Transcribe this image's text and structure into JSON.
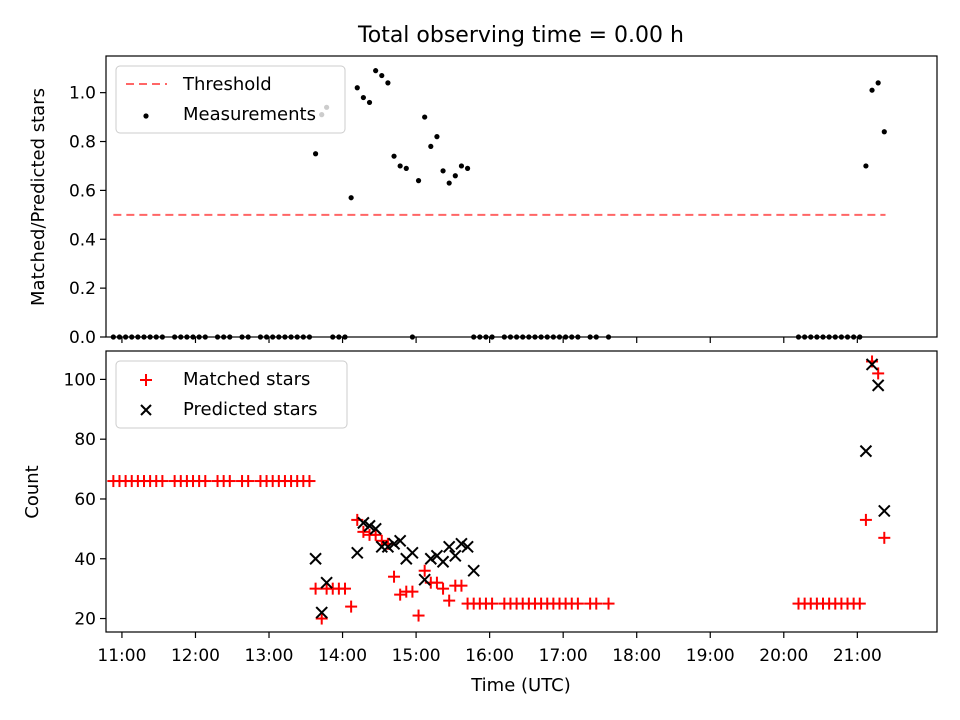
{
  "chart_data": [
    {
      "type": "scatter",
      "title": "Total observing time = 0.00 h",
      "ylabel": "Matched/Predicted stars",
      "xlabel": "",
      "xlim": [
        "10:47",
        "22:05"
      ],
      "ylim": [
        0,
        1.15
      ],
      "yticks": [
        0.0,
        0.2,
        0.4,
        0.6,
        0.8,
        1.0
      ],
      "ytick_labels": [
        "0.0",
        "0.2",
        "0.4",
        "0.6",
        "0.8",
        "1.0"
      ],
      "legend": "top-left",
      "threshold": {
        "name": "Threshold",
        "color": "#ff6666",
        "style": "dashed",
        "x": [
          "10:53",
          "21:23"
        ],
        "y": 0.5
      },
      "series": [
        {
          "name": "Measurements",
          "color": "#000000",
          "marker": "dot",
          "x": [
            "10:53",
            "10:58",
            "11:03",
            "11:08",
            "11:13",
            "11:18",
            "11:23",
            "11:28",
            "11:33",
            "11:43",
            "11:48",
            "11:53",
            "11:58",
            "12:03",
            "12:08",
            "12:18",
            "12:23",
            "12:28",
            "12:38",
            "12:43",
            "12:53",
            "12:58",
            "13:03",
            "13:08",
            "13:13",
            "13:18",
            "13:23",
            "13:28",
            "13:33",
            "13:38",
            "13:43",
            "13:47",
            "13:52",
            "13:57",
            "14:02",
            "14:07",
            "14:12",
            "14:17",
            "14:22",
            "14:27",
            "14:32",
            "14:37",
            "14:42",
            "14:47",
            "14:52",
            "14:57",
            "15:02",
            "15:07",
            "15:12",
            "15:17",
            "15:22",
            "15:27",
            "15:32",
            "15:37",
            "15:42",
            "15:47",
            "15:52",
            "15:57",
            "16:02",
            "16:12",
            "16:17",
            "16:22",
            "16:27",
            "16:32",
            "16:37",
            "16:42",
            "16:47",
            "16:52",
            "16:57",
            "17:02",
            "17:07",
            "17:12",
            "17:22",
            "17:27",
            "17:37",
            "20:12",
            "20:17",
            "20:22",
            "20:27",
            "20:32",
            "20:37",
            "20:42",
            "20:47",
            "20:52",
            "20:57",
            "21:02",
            "21:07",
            "21:12",
            "21:17",
            "21:22"
          ],
          "y": [
            0,
            0,
            0,
            0,
            0,
            0,
            0,
            0,
            0,
            0,
            0,
            0,
            0,
            0,
            0,
            0,
            0,
            0,
            0,
            0,
            0,
            0,
            0,
            0,
            0,
            0,
            0,
            0,
            0,
            0.75,
            0.91,
            0.94,
            0,
            0,
            0,
            0.57,
            1.02,
            0.98,
            0.96,
            1.09,
            1.07,
            1.04,
            0.74,
            0.7,
            0.69,
            0,
            0.64,
            0.9,
            0.78,
            0.82,
            0.68,
            0.63,
            0.66,
            0.7,
            0.69,
            0,
            0,
            0,
            0,
            0,
            0,
            0,
            0,
            0,
            0,
            0,
            0,
            0,
            0,
            0,
            0,
            0,
            0,
            0,
            0,
            0,
            0,
            0,
            0,
            0,
            0,
            0,
            0,
            0,
            0,
            0,
            0.7,
            1.01,
            1.04,
            0.84
          ]
        }
      ]
    },
    {
      "type": "scatter",
      "title": "",
      "ylabel": "Count",
      "xlabel": "Time (UTC)",
      "xlim": [
        "10:47",
        "22:05"
      ],
      "ylim": [
        15.5,
        109.5
      ],
      "yticks": [
        20,
        40,
        60,
        80,
        100
      ],
      "ytick_labels": [
        "20",
        "40",
        "60",
        "80",
        "100"
      ],
      "xticks": [
        "11:00",
        "12:00",
        "13:00",
        "14:00",
        "15:00",
        "16:00",
        "17:00",
        "18:00",
        "19:00",
        "20:00",
        "21:00"
      ],
      "xtick_labels": [
        "11:00",
        "12:00",
        "13:00",
        "14:00",
        "15:00",
        "16:00",
        "17:00",
        "18:00",
        "19:00",
        "20:00",
        "21:00"
      ],
      "legend": "top-left",
      "series": [
        {
          "name": "Matched stars",
          "color": "#ff0000",
          "marker": "plus",
          "x": [
            "10:53",
            "10:58",
            "11:03",
            "11:08",
            "11:13",
            "11:18",
            "11:23",
            "11:28",
            "11:33",
            "11:43",
            "11:48",
            "11:53",
            "11:58",
            "12:03",
            "12:08",
            "12:18",
            "12:23",
            "12:28",
            "12:38",
            "12:43",
            "12:53",
            "12:58",
            "13:03",
            "13:08",
            "13:13",
            "13:18",
            "13:23",
            "13:28",
            "13:33",
            "13:38",
            "13:43",
            "13:47",
            "13:52",
            "13:57",
            "14:02",
            "14:07",
            "14:12",
            "14:17",
            "14:22",
            "14:27",
            "14:32",
            "14:37",
            "14:42",
            "14:47",
            "14:52",
            "14:57",
            "15:02",
            "15:07",
            "15:12",
            "15:17",
            "15:22",
            "15:27",
            "15:32",
            "15:37",
            "15:42",
            "15:47",
            "15:52",
            "15:57",
            "16:02",
            "16:12",
            "16:17",
            "16:22",
            "16:27",
            "16:32",
            "16:37",
            "16:42",
            "16:47",
            "16:52",
            "16:57",
            "17:02",
            "17:07",
            "17:12",
            "17:22",
            "17:27",
            "17:37",
            "20:12",
            "20:17",
            "20:22",
            "20:27",
            "20:32",
            "20:37",
            "20:42",
            "20:47",
            "20:52",
            "20:57",
            "21:02",
            "21:07",
            "21:12",
            "21:17",
            "21:22"
          ],
          "y": [
            66,
            66,
            66,
            66,
            66,
            66,
            66,
            66,
            66,
            66,
            66,
            66,
            66,
            66,
            66,
            66,
            66,
            66,
            66,
            66,
            66,
            66,
            66,
            66,
            66,
            66,
            66,
            66,
            66,
            30,
            20,
            30,
            30,
            30,
            30,
            24,
            53,
            49,
            48,
            48,
            46,
            45,
            34,
            28,
            29,
            29,
            21,
            36,
            32,
            32,
            30,
            26,
            31,
            31,
            25,
            25,
            25,
            25,
            25,
            25,
            25,
            25,
            25,
            25,
            25,
            25,
            25,
            25,
            25,
            25,
            25,
            25,
            25,
            25,
            25,
            25,
            25,
            25,
            25,
            25,
            25,
            25,
            25,
            25,
            25,
            25,
            53,
            106,
            102,
            47
          ]
        },
        {
          "name": "Predicted stars",
          "color": "#000000",
          "marker": "x",
          "x": [
            "13:38",
            "13:43",
            "13:47",
            "14:12",
            "14:17",
            "14:22",
            "14:27",
            "14:32",
            "14:37",
            "14:42",
            "14:47",
            "14:52",
            "14:57",
            "15:07",
            "15:12",
            "15:17",
            "15:22",
            "15:27",
            "15:32",
            "15:37",
            "15:42",
            "15:47",
            "21:07",
            "21:12",
            "21:17",
            "21:22"
          ],
          "y": [
            40,
            22,
            32,
            42,
            52,
            51,
            50,
            44,
            44,
            45,
            46,
            40,
            42,
            33,
            40,
            41,
            39,
            44,
            41,
            45,
            44,
            36,
            76,
            105,
            98,
            56
          ]
        }
      ]
    }
  ]
}
